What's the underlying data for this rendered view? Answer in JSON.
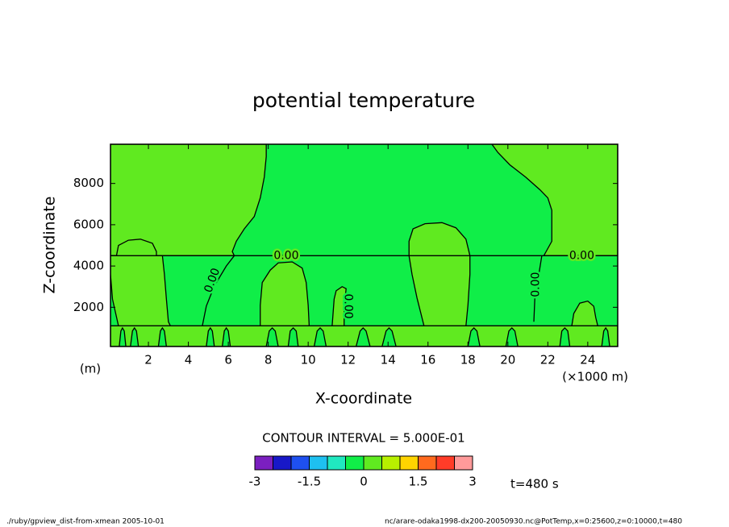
{
  "chart_data": {
    "type": "contour",
    "title": "potential temperature",
    "xlabel": "X-coordinate",
    "ylabel": "Z-coordinate",
    "xunit": "(×1000 m)",
    "yunit": "(m)",
    "xlim": [
      0.1,
      25.5
    ],
    "ylim": [
      100,
      9900
    ],
    "xticks": [
      2,
      4,
      6,
      8,
      10,
      12,
      14,
      16,
      18,
      20,
      22,
      24
    ],
    "yticks": [
      2000,
      4000,
      6000,
      8000
    ],
    "contour_level": 0,
    "contour_labels": [
      "0.00",
      "0.00",
      "0.00",
      "0.00",
      "0.00"
    ],
    "contour_interval_text": "CONTOUR INTERVAL = 5.000E-01",
    "time_label": "t=480 s",
    "footer_left": "./ruby/gpview_dist-from-xmean  2005-10-01",
    "footer_right": "nc/arare-odaka1998-dx200-20050930.nc@PotTemp,x=0:25600,z=0:10000,t=480",
    "colorbar": {
      "levels": [
        -3,
        -2.5,
        -2,
        -1.5,
        -1,
        -0.5,
        0,
        0.5,
        1,
        1.5,
        2,
        2.5,
        3
      ],
      "colors": [
        "#7b1fc0",
        "#1818c8",
        "#1e50f0",
        "#1ec0f0",
        "#20e8c0",
        "#10ee48",
        "#60ea20",
        "#b8f000",
        "#ffd400",
        "#ff6a1e",
        "#ff3c28",
        "#ff9a9a"
      ],
      "ticks": [
        -3,
        -1.5,
        0,
        1.5,
        3
      ]
    },
    "positive_regions": [
      {
        "x": [
          0.1,
          25.5,
          25.5,
          0.1
        ],
        "z": [
          100,
          100,
          1100,
          1100
        ]
      },
      {
        "x": [
          0.1,
          7.9,
          7.9,
          7.8,
          7.6,
          7.3,
          6.8,
          6.4,
          6.2,
          6.3,
          0.1
        ],
        "z": [
          9900,
          9900,
          9300,
          8300,
          7300,
          6400,
          5800,
          5200,
          4700,
          4500,
          4500
        ]
      },
      {
        "x": [
          19.2,
          19.5,
          20.1,
          20.9,
          21.6,
          22.0,
          22.2,
          22.2,
          21.8,
          25.5,
          25.5
        ],
        "z": [
          9900,
          9500,
          8900,
          8300,
          7700,
          7300,
          6700,
          5200,
          4500,
          4500,
          9900
        ]
      },
      {
        "x": [
          0.5,
          0.2,
          0.1,
          0.1,
          0.4,
          0.5,
          1.0,
          1.6,
          2.2,
          2.4,
          2.4,
          2.7,
          2.8,
          2.9,
          3.0,
          3.1
        ],
        "z": [
          1100,
          2400,
          3600,
          4500,
          4500,
          5000,
          5250,
          5300,
          5100,
          4700,
          4500,
          4500,
          3600,
          2400,
          1300,
          1100
        ]
      },
      {
        "x": [
          7.6,
          7.6,
          7.7,
          8.1,
          8.5,
          9.2,
          9.7,
          9.9,
          10.0,
          10.05
        ],
        "z": [
          1100,
          2100,
          3200,
          3800,
          4150,
          4200,
          3900,
          3200,
          2100,
          1100
        ]
      },
      {
        "x": [
          11.2,
          11.3,
          11.4,
          11.7,
          11.9,
          11.8,
          11.8
        ],
        "z": [
          1100,
          2400,
          2800,
          3000,
          2900,
          2000,
          1100
        ]
      },
      {
        "x": [
          15.8,
          15.45,
          15.2,
          15.05,
          15.05,
          15.25,
          15.85,
          16.7,
          17.4,
          17.9,
          18.1,
          18.1,
          18.0,
          17.9
        ],
        "z": [
          1100,
          2450,
          3600,
          4500,
          5200,
          5800,
          6050,
          6100,
          5850,
          5300,
          4500,
          3600,
          2100,
          1100
        ]
      },
      {
        "x": [
          23.2,
          23.3,
          23.6,
          24.0,
          24.3,
          24.4,
          24.5
        ],
        "z": [
          1100,
          1700,
          2200,
          2300,
          2050,
          1500,
          1100
        ]
      }
    ],
    "negative_regions": [
      {
        "x": [
          0.54,
          0.62,
          0.7,
          0.79,
          0.87
        ],
        "z": [
          100,
          850,
          1000,
          850,
          100
        ]
      },
      {
        "x": [
          1.1,
          1.2,
          1.3,
          1.4,
          1.5
        ],
        "z": [
          100,
          850,
          1000,
          850,
          100
        ]
      },
      {
        "x": [
          2.5,
          2.6,
          2.7,
          2.8,
          2.9
        ],
        "z": [
          100,
          850,
          1000,
          850,
          100
        ]
      },
      {
        "x": [
          4.9,
          5.0,
          5.1,
          5.2,
          5.3
        ],
        "z": [
          100,
          850,
          1000,
          850,
          100
        ]
      },
      {
        "x": [
          5.7,
          5.8,
          5.9,
          6.0,
          6.1
        ],
        "z": [
          100,
          850,
          1000,
          850,
          100
        ]
      },
      {
        "x": [
          7.9,
          8.05,
          8.2,
          8.35,
          8.5
        ],
        "z": [
          100,
          850,
          1000,
          850,
          100
        ]
      },
      {
        "x": [
          9.0,
          9.1,
          9.25,
          9.4,
          9.5
        ],
        "z": [
          100,
          850,
          1000,
          850,
          100
        ]
      },
      {
        "x": [
          10.3,
          10.45,
          10.6,
          10.75,
          10.9
        ],
        "z": [
          100,
          850,
          1000,
          850,
          100
        ]
      },
      {
        "x": [
          12.4,
          12.6,
          12.75,
          12.9,
          13.1
        ],
        "z": [
          100,
          850,
          1000,
          850,
          100
        ]
      },
      {
        "x": [
          13.7,
          13.9,
          14.05,
          14.2,
          14.4
        ],
        "z": [
          100,
          850,
          1000,
          850,
          100
        ]
      },
      {
        "x": [
          18.0,
          18.15,
          18.3,
          18.45,
          18.6
        ],
        "z": [
          100,
          850,
          1000,
          850,
          100
        ]
      },
      {
        "x": [
          19.9,
          20.05,
          20.2,
          20.35,
          20.5
        ],
        "z": [
          100,
          850,
          1000,
          850,
          100
        ]
      },
      {
        "x": [
          22.6,
          22.7,
          22.85,
          23.0,
          23.1
        ],
        "z": [
          100,
          850,
          1000,
          850,
          100
        ]
      },
      {
        "x": [
          24.7,
          24.8,
          24.9,
          25.0,
          25.1
        ],
        "z": [
          100,
          850,
          1000,
          850,
          100
        ]
      }
    ],
    "contour_lines": [
      {
        "x": [
          0.1,
          25.5
        ],
        "z": [
          4500,
          4500
        ]
      },
      {
        "x": [
          0.1,
          25.5
        ],
        "z": [
          1100,
          1100
        ]
      },
      {
        "x": [
          6.3,
          5.9,
          5.3,
          4.9,
          4.7
        ],
        "z": [
          4500,
          4000,
          3030,
          2060,
          1100
        ]
      },
      {
        "x": [
          21.7,
          21.55,
          21.35,
          21.3
        ],
        "z": [
          4500,
          3600,
          2450,
          1300
        ]
      }
    ]
  }
}
